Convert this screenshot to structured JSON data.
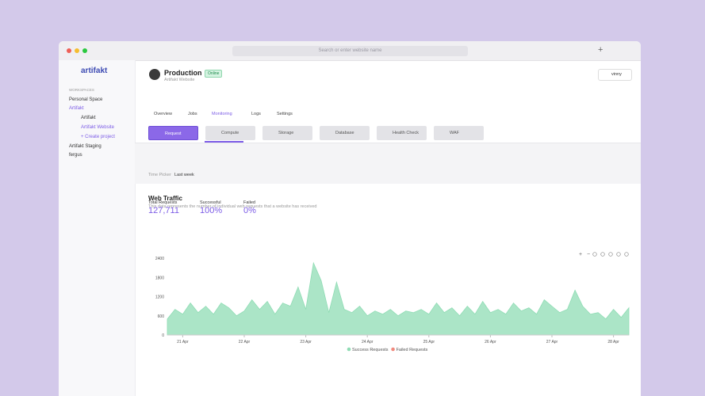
{
  "browser": {
    "address_placeholder": "Search or enter website name"
  },
  "sidebar": {
    "logo": "artifakt",
    "section": "WORKSPACES",
    "items": [
      "Personal Space",
      "Artifakt",
      "Artifakt",
      "Artifakt Website",
      "+ Create project",
      "Artifakt Staging",
      "fergus"
    ]
  },
  "header": {
    "title": "Production",
    "status": "Online",
    "subtitle": "Artifakt Website",
    "user": "vinny"
  },
  "tabs": [
    "Overview",
    "Jobs",
    "Monitoring",
    "Logs",
    "Settings"
  ],
  "metric_buttons": [
    "Request",
    "Compute",
    "Storage",
    "Database",
    "Health Check",
    "WAF"
  ],
  "time_picker": {
    "label": "Time Picker",
    "value": "Last week"
  },
  "stats": [
    {
      "label": "Total Requests",
      "value": "127,711"
    },
    {
      "label": "Successful",
      "value": "100%"
    },
    {
      "label": "Failed",
      "value": "0%"
    }
  ],
  "chart_data": {
    "type": "area",
    "title": "Web Traffic",
    "subtitle": "This data represents the number of individual web requests that a website has received",
    "categories": [
      null,
      null,
      "21 Apr",
      null,
      null,
      null,
      null,
      null,
      null,
      null,
      "22 Apr",
      null,
      null,
      null,
      null,
      null,
      null,
      null,
      "23 Apr",
      null,
      null,
      null,
      null,
      null,
      null,
      null,
      "24 Apr",
      null,
      null,
      null,
      null,
      null,
      null,
      null,
      "25 Apr",
      null,
      null,
      null,
      null,
      null,
      null,
      null,
      "26 Apr",
      null,
      null,
      null,
      null,
      null,
      null,
      null,
      "27 Apr",
      null,
      null,
      null,
      null,
      null,
      null,
      null,
      "28 Apr",
      null,
      null
    ],
    "series": [
      {
        "name": "Success Requests",
        "color": "#8fdcb4",
        "values": [
          500,
          800,
          650,
          1000,
          700,
          900,
          650,
          1000,
          850,
          600,
          750,
          1100,
          800,
          1050,
          650,
          1000,
          900,
          1500,
          800,
          2250,
          1700,
          700,
          1650,
          800,
          700,
          900,
          600,
          750,
          650,
          800,
          600,
          750,
          700,
          800,
          650,
          1000,
          700,
          850,
          600,
          900,
          650,
          1050,
          700,
          800,
          650,
          1000,
          750,
          850,
          650,
          1100,
          900,
          700,
          800,
          1400,
          900,
          650,
          700,
          500,
          800,
          550,
          850
        ]
      },
      {
        "name": "Failed Requests",
        "color": "#f08a7e",
        "values": [
          0,
          0,
          0,
          0,
          0,
          0,
          0,
          0,
          0,
          0,
          0,
          0,
          0,
          0,
          0,
          0,
          0,
          0,
          0,
          0,
          0,
          0,
          0,
          0,
          0,
          0,
          0,
          0,
          0,
          0,
          0,
          0,
          0,
          0,
          0,
          0,
          0,
          0,
          0,
          0,
          0,
          0,
          0,
          0,
          0,
          0,
          0,
          0,
          0,
          0,
          0,
          0,
          0,
          0,
          0,
          0,
          0,
          0,
          0,
          0,
          0
        ]
      }
    ],
    "ylim": [
      0,
      2400
    ],
    "yticks": [
      0,
      600,
      1200,
      1800,
      2400
    ],
    "grid": false
  }
}
